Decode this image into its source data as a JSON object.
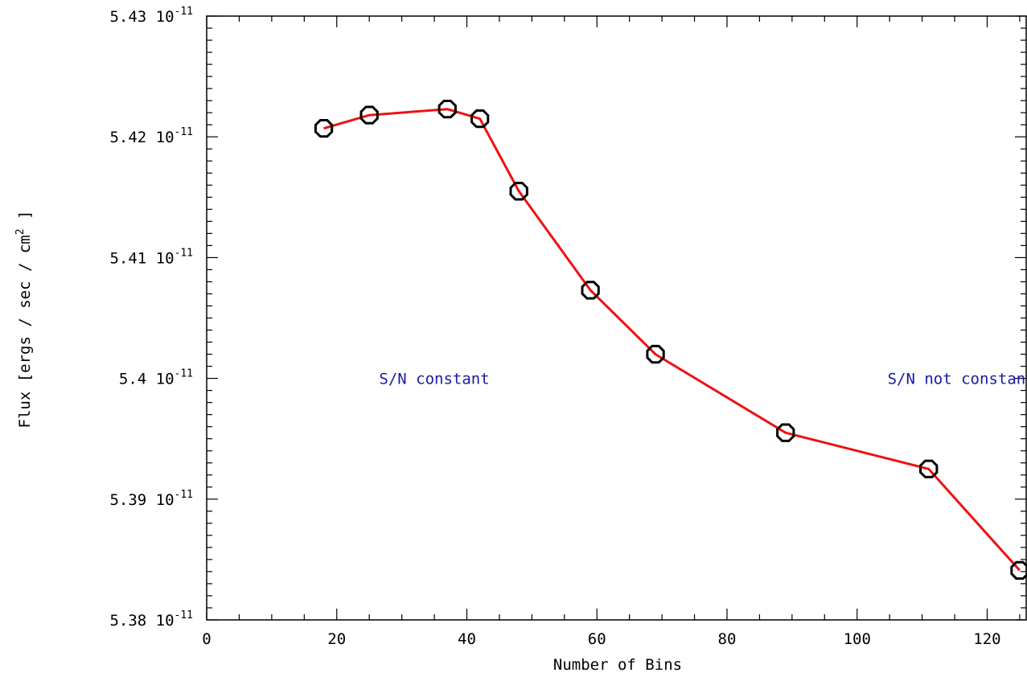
{
  "chart_data": {
    "type": "line",
    "xlabel": "Number of Bins",
    "ylabel": "Flux [ergs / sec / cm",
    "ylabel_sup": "2",
    "ylabel_end": " ]",
    "xlim": [
      0,
      126
    ],
    "ylim": [
      5.38e-11,
      5.43e-11
    ],
    "x_ticks": [
      0,
      20,
      40,
      60,
      80,
      100,
      120
    ],
    "y_ticks": [
      {
        "value": 5.38e-11,
        "mantissa": "5.38 10",
        "exponent": "-11"
      },
      {
        "value": 5.39e-11,
        "mantissa": "5.39 10",
        "exponent": "-11"
      },
      {
        "value": 5.4e-11,
        "mantissa": "5.4 10",
        "exponent": "-11"
      },
      {
        "value": 5.41e-11,
        "mantissa": "5.41 10",
        "exponent": "-11"
      },
      {
        "value": 5.42e-11,
        "mantissa": "5.42 10",
        "exponent": "-11"
      },
      {
        "value": 5.43e-11,
        "mantissa": "5.43 10",
        "exponent": "-11"
      }
    ],
    "series": [
      {
        "x": [
          18,
          25,
          37,
          42,
          48,
          59,
          69,
          89,
          111,
          125
        ],
        "y": [
          5.4207e-11,
          5.4218e-11,
          5.4223e-11,
          5.4215e-11,
          5.4155e-11,
          5.4073e-11,
          5.402e-11,
          5.3955e-11,
          5.3925e-11,
          5.3841e-11
        ],
        "line_color": "#ee1111",
        "marker": "octagon",
        "marker_color": "#000000"
      }
    ],
    "annotations": [
      {
        "text": "S/N constant",
        "x": 35,
        "y": 5.4e-11,
        "color": "#1a1aa8",
        "anchor": "middle"
      },
      {
        "text": "S/N not constant",
        "x": 116,
        "y": 5.4e-11,
        "color": "#1a1aa8",
        "anchor": "middle"
      }
    ],
    "grid": false
  }
}
